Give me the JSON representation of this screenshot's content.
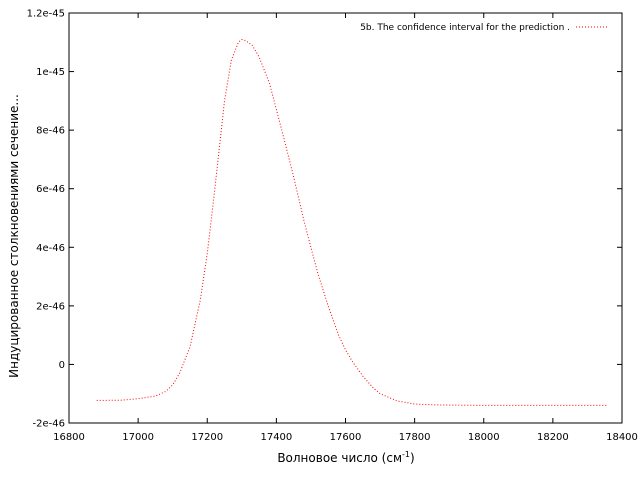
{
  "chart_data": {
    "type": "line",
    "title": "",
    "xlabel": "Волновое число (см",
    "xlabel_sup": "-1",
    "xlabel_close": ")",
    "ylabel": "Индуцированное столкновениями сечение...",
    "xlim": [
      16800,
      18400
    ],
    "ylim": [
      -2e-46,
      1.2e-45
    ],
    "xticks": [
      16800,
      17000,
      17200,
      17400,
      17600,
      17800,
      18000,
      18200,
      18400
    ],
    "xtick_labels": [
      "16800",
      "17000",
      "17200",
      "17400",
      "17600",
      "17800",
      "18000",
      "18200",
      "18400"
    ],
    "yticks": [
      -2e-46,
      0,
      2e-46,
      4e-46,
      6e-46,
      8e-46,
      1e-45,
      1.2e-45
    ],
    "ytick_labels": [
      "-2e-46",
      "0",
      "2e-46",
      "4e-46",
      "6e-46",
      "8e-46",
      "1e-45",
      "1.2e-45"
    ],
    "grid": false,
    "legend_position": "top-right",
    "series": [
      {
        "name": "5b. The confidence interval for the prediction .",
        "color": "#ff0000",
        "style": "dotted",
        "x": [
          16880,
          16950,
          17000,
          17050,
          17080,
          17100,
          17120,
          17150,
          17180,
          17200,
          17220,
          17250,
          17270,
          17290,
          17300,
          17310,
          17330,
          17350,
          17380,
          17400,
          17420,
          17450,
          17480,
          17500,
          17520,
          17550,
          17580,
          17600,
          17620,
          17650,
          17680,
          17700,
          17750,
          17800,
          17850,
          17900,
          18000,
          18100,
          18200,
          18300,
          18360
        ],
        "y": [
          -1.23e-46,
          -1.22e-46,
          -1.17e-46,
          -1.08e-46,
          -9.2e-47,
          -7e-47,
          -3e-47,
          6e-47,
          2.2e-46,
          3.8e-46,
          5.8e-46,
          9e-46,
          1.04e-45,
          1.1e-45,
          1.11e-45,
          1.106e-45,
          1.09e-45,
          1.05e-45,
          9.6e-46,
          8.7e-46,
          7.8e-46,
          6.4e-46,
          4.9e-46,
          4e-46,
          3.1e-46,
          2e-46,
          1e-46,
          5e-47,
          1e-47,
          -4e-47,
          -8e-47,
          -1e-46,
          -1.25e-46,
          -1.35e-46,
          -1.38e-46,
          -1.39e-46,
          -1.4e-46,
          -1.4e-46,
          -1.4e-46,
          -1.4e-46,
          -1.4e-46
        ]
      }
    ]
  }
}
